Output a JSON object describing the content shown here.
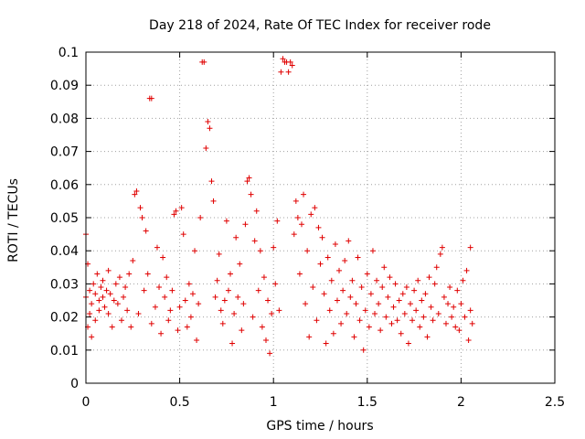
{
  "chart_data": {
    "type": "scatter",
    "title": "Day 218 of 2024, Rate Of TEC Index for receiver rode",
    "xlabel": "GPS time / hours",
    "ylabel": "ROTI / TECUs",
    "xlim": [
      0,
      2.5
    ],
    "ylim": [
      0,
      0.1
    ],
    "xticks": [
      0,
      0.5,
      1,
      1.5,
      2,
      2.5
    ],
    "xtick_labels": [
      "0",
      "0.5",
      "1",
      "1.5",
      "2",
      "2.5"
    ],
    "yticks": [
      0,
      0.01,
      0.02,
      0.03,
      0.04,
      0.05,
      0.06,
      0.07,
      0.08,
      0.09,
      0.1
    ],
    "ytick_labels": [
      "0",
      "0.01",
      "0.02",
      "0.03",
      "0.04",
      "0.05",
      "0.06",
      "0.07",
      "0.08",
      "0.09",
      "0.1"
    ],
    "grid": true,
    "marker": "+",
    "color": "#e00000",
    "series": [
      {
        "name": "ROTI",
        "points": [
          [
            0.0,
            0.045
          ],
          [
            0.0,
            0.026
          ],
          [
            0.01,
            0.036
          ],
          [
            0.01,
            0.017
          ],
          [
            0.02,
            0.028
          ],
          [
            0.02,
            0.021
          ],
          [
            0.03,
            0.024
          ],
          [
            0.03,
            0.014
          ],
          [
            0.04,
            0.03
          ],
          [
            0.05,
            0.027
          ],
          [
            0.05,
            0.019
          ],
          [
            0.06,
            0.033
          ],
          [
            0.07,
            0.025
          ],
          [
            0.07,
            0.022
          ],
          [
            0.08,
            0.029
          ],
          [
            0.09,
            0.031
          ],
          [
            0.09,
            0.026
          ],
          [
            0.1,
            0.023
          ],
          [
            0.11,
            0.028
          ],
          [
            0.12,
            0.034
          ],
          [
            0.12,
            0.021
          ],
          [
            0.13,
            0.027
          ],
          [
            0.14,
            0.017
          ],
          [
            0.15,
            0.025
          ],
          [
            0.16,
            0.03
          ],
          [
            0.17,
            0.024
          ],
          [
            0.18,
            0.032
          ],
          [
            0.19,
            0.019
          ],
          [
            0.2,
            0.026
          ],
          [
            0.21,
            0.029
          ],
          [
            0.22,
            0.022
          ],
          [
            0.23,
            0.033
          ],
          [
            0.24,
            0.017
          ],
          [
            0.25,
            0.037
          ],
          [
            0.26,
            0.057
          ],
          [
            0.27,
            0.058
          ],
          [
            0.28,
            0.021
          ],
          [
            0.29,
            0.053
          ],
          [
            0.3,
            0.05
          ],
          [
            0.31,
            0.028
          ],
          [
            0.32,
            0.046
          ],
          [
            0.33,
            0.033
          ],
          [
            0.34,
            0.086
          ],
          [
            0.35,
            0.086
          ],
          [
            0.35,
            0.018
          ],
          [
            0.37,
            0.023
          ],
          [
            0.38,
            0.041
          ],
          [
            0.39,
            0.029
          ],
          [
            0.4,
            0.015
          ],
          [
            0.41,
            0.038
          ],
          [
            0.42,
            0.026
          ],
          [
            0.43,
            0.032
          ],
          [
            0.44,
            0.019
          ],
          [
            0.45,
            0.022
          ],
          [
            0.46,
            0.028
          ],
          [
            0.47,
            0.051
          ],
          [
            0.48,
            0.052
          ],
          [
            0.49,
            0.016
          ],
          [
            0.5,
            0.023
          ],
          [
            0.51,
            0.053
          ],
          [
            0.52,
            0.045
          ],
          [
            0.53,
            0.025
          ],
          [
            0.54,
            0.017
          ],
          [
            0.55,
            0.03
          ],
          [
            0.56,
            0.02
          ],
          [
            0.57,
            0.027
          ],
          [
            0.58,
            0.04
          ],
          [
            0.59,
            0.013
          ],
          [
            0.6,
            0.024
          ],
          [
            0.61,
            0.05
          ],
          [
            0.62,
            0.097
          ],
          [
            0.63,
            0.097
          ],
          [
            0.64,
            0.071
          ],
          [
            0.65,
            0.079
          ],
          [
            0.66,
            0.077
          ],
          [
            0.67,
            0.061
          ],
          [
            0.68,
            0.055
          ],
          [
            0.69,
            0.026
          ],
          [
            0.7,
            0.031
          ],
          [
            0.71,
            0.039
          ],
          [
            0.72,
            0.022
          ],
          [
            0.73,
            0.018
          ],
          [
            0.74,
            0.025
          ],
          [
            0.75,
            0.049
          ],
          [
            0.76,
            0.028
          ],
          [
            0.77,
            0.033
          ],
          [
            0.78,
            0.012
          ],
          [
            0.79,
            0.021
          ],
          [
            0.8,
            0.044
          ],
          [
            0.81,
            0.026
          ],
          [
            0.82,
            0.036
          ],
          [
            0.83,
            0.016
          ],
          [
            0.84,
            0.024
          ],
          [
            0.85,
            0.048
          ],
          [
            0.86,
            0.061
          ],
          [
            0.87,
            0.062
          ],
          [
            0.88,
            0.057
          ],
          [
            0.89,
            0.02
          ],
          [
            0.9,
            0.043
          ],
          [
            0.91,
            0.052
          ],
          [
            0.92,
            0.028
          ],
          [
            0.93,
            0.04
          ],
          [
            0.94,
            0.017
          ],
          [
            0.95,
            0.032
          ],
          [
            0.96,
            0.013
          ],
          [
            0.97,
            0.025
          ],
          [
            0.98,
            0.009
          ],
          [
            0.99,
            0.021
          ],
          [
            1.0,
            0.041
          ],
          [
            1.01,
            0.03
          ],
          [
            1.02,
            0.049
          ],
          [
            1.03,
            0.022
          ],
          [
            1.04,
            0.094
          ],
          [
            1.05,
            0.098
          ],
          [
            1.06,
            0.097
          ],
          [
            1.07,
            0.097
          ],
          [
            1.08,
            0.094
          ],
          [
            1.09,
            0.097
          ],
          [
            1.1,
            0.096
          ],
          [
            1.11,
            0.045
          ],
          [
            1.12,
            0.055
          ],
          [
            1.13,
            0.05
          ],
          [
            1.14,
            0.033
          ],
          [
            1.15,
            0.048
          ],
          [
            1.16,
            0.057
          ],
          [
            1.17,
            0.024
          ],
          [
            1.18,
            0.04
          ],
          [
            1.19,
            0.014
          ],
          [
            1.2,
            0.051
          ],
          [
            1.21,
            0.029
          ],
          [
            1.22,
            0.053
          ],
          [
            1.23,
            0.019
          ],
          [
            1.24,
            0.047
          ],
          [
            1.25,
            0.036
          ],
          [
            1.26,
            0.044
          ],
          [
            1.27,
            0.027
          ],
          [
            1.28,
            0.012
          ],
          [
            1.29,
            0.038
          ],
          [
            1.3,
            0.022
          ],
          [
            1.31,
            0.031
          ],
          [
            1.32,
            0.015
          ],
          [
            1.33,
            0.042
          ],
          [
            1.34,
            0.025
          ],
          [
            1.35,
            0.034
          ],
          [
            1.36,
            0.018
          ],
          [
            1.37,
            0.028
          ],
          [
            1.38,
            0.037
          ],
          [
            1.39,
            0.021
          ],
          [
            1.4,
            0.043
          ],
          [
            1.41,
            0.026
          ],
          [
            1.42,
            0.031
          ],
          [
            1.43,
            0.014
          ],
          [
            1.44,
            0.024
          ],
          [
            1.45,
            0.038
          ],
          [
            1.46,
            0.019
          ],
          [
            1.47,
            0.029
          ],
          [
            1.48,
            0.01
          ],
          [
            1.49,
            0.022
          ],
          [
            1.5,
            0.033
          ],
          [
            1.51,
            0.017
          ],
          [
            1.52,
            0.027
          ],
          [
            1.53,
            0.04
          ],
          [
            1.54,
            0.021
          ],
          [
            1.55,
            0.031
          ],
          [
            1.56,
            0.024
          ],
          [
            1.57,
            0.016
          ],
          [
            1.58,
            0.029
          ],
          [
            1.59,
            0.035
          ],
          [
            1.6,
            0.02
          ],
          [
            1.61,
            0.026
          ],
          [
            1.62,
            0.032
          ],
          [
            1.63,
            0.018
          ],
          [
            1.64,
            0.023
          ],
          [
            1.65,
            0.03
          ],
          [
            1.66,
            0.019
          ],
          [
            1.67,
            0.025
          ],
          [
            1.68,
            0.015
          ],
          [
            1.69,
            0.027
          ],
          [
            1.7,
            0.021
          ],
          [
            1.71,
            0.029
          ],
          [
            1.72,
            0.012
          ],
          [
            1.73,
            0.024
          ],
          [
            1.74,
            0.019
          ],
          [
            1.75,
            0.028
          ],
          [
            1.76,
            0.022
          ],
          [
            1.77,
            0.031
          ],
          [
            1.78,
            0.017
          ],
          [
            1.79,
            0.025
          ],
          [
            1.8,
            0.02
          ],
          [
            1.81,
            0.027
          ],
          [
            1.82,
            0.014
          ],
          [
            1.83,
            0.032
          ],
          [
            1.84,
            0.023
          ],
          [
            1.85,
            0.019
          ],
          [
            1.86,
            0.03
          ],
          [
            1.87,
            0.035
          ],
          [
            1.88,
            0.021
          ],
          [
            1.89,
            0.039
          ],
          [
            1.9,
            0.041
          ],
          [
            1.91,
            0.026
          ],
          [
            1.92,
            0.018
          ],
          [
            1.93,
            0.024
          ],
          [
            1.94,
            0.029
          ],
          [
            1.95,
            0.02
          ],
          [
            1.96,
            0.023
          ],
          [
            1.97,
            0.017
          ],
          [
            1.98,
            0.028
          ],
          [
            1.99,
            0.016
          ],
          [
            2.0,
            0.024
          ],
          [
            2.01,
            0.031
          ],
          [
            2.02,
            0.02
          ],
          [
            2.03,
            0.034
          ],
          [
            2.04,
            0.013
          ],
          [
            2.05,
            0.041
          ],
          [
            2.05,
            0.022
          ],
          [
            2.06,
            0.018
          ]
        ]
      }
    ]
  }
}
